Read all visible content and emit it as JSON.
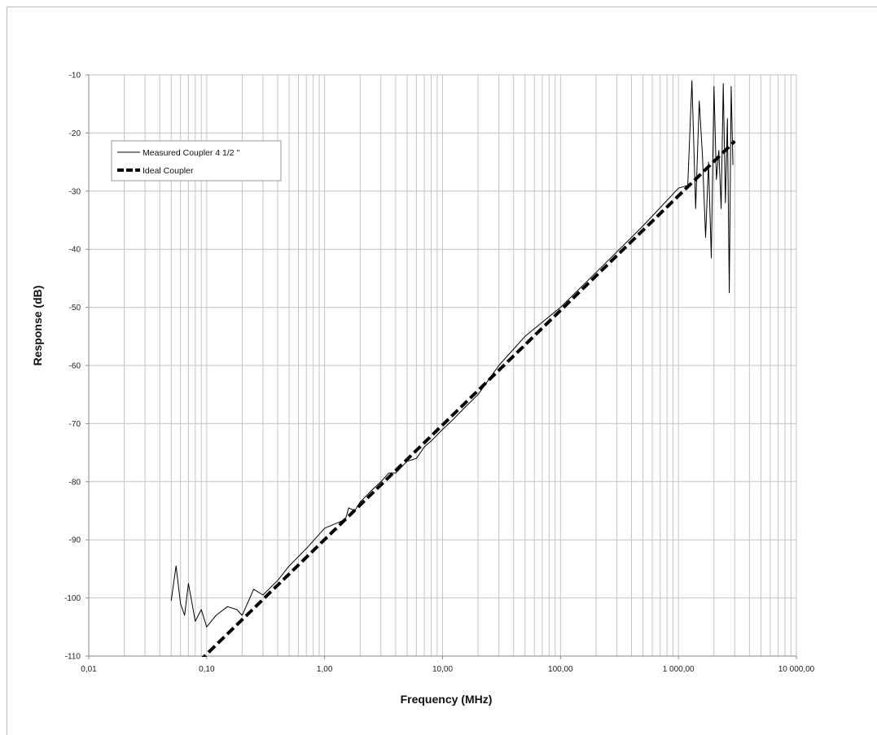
{
  "chart_data": {
    "type": "line",
    "title": "",
    "xlabel": "Frequency (MHz)",
    "ylabel": "Response (dB)",
    "x_scale": "log",
    "xlim": [
      0.01,
      10000
    ],
    "ylim": [
      -110,
      -10
    ],
    "x_ticks": [
      0.01,
      0.1,
      1,
      10,
      100,
      1000,
      10000
    ],
    "x_tick_labels": [
      "0,01",
      "0,10",
      "1,00",
      "10,00",
      "100,00",
      "1 000,00",
      "10 000,00"
    ],
    "y_ticks": [
      -10,
      -20,
      -30,
      -40,
      -50,
      -60,
      -70,
      -80,
      -90,
      -100,
      -110
    ],
    "y_tick_labels": [
      "-10",
      "-20",
      "-30",
      "-40",
      "-50",
      "-60",
      "-70",
      "-80",
      "-90",
      "-100",
      "-110"
    ],
    "grid": true,
    "legend": "top-left",
    "series": [
      {
        "name": "Measured Coupler 4 1/2 \"",
        "style": "thin-solid",
        "color": "#000000",
        "x": [
          0.05,
          0.055,
          0.06,
          0.065,
          0.07,
          0.08,
          0.09,
          0.1,
          0.12,
          0.15,
          0.18,
          0.2,
          0.25,
          0.3,
          0.4,
          0.5,
          0.7,
          1.0,
          1.5,
          1.6,
          1.8,
          2.0,
          2.5,
          3.0,
          3.5,
          4.0,
          5.0,
          6.0,
          7.0,
          8.0,
          10,
          12,
          15,
          20,
          30,
          50,
          100,
          200,
          500,
          1000,
          1200,
          1300,
          1400,
          1500,
          1600,
          1700,
          1800,
          1900,
          2000,
          2100,
          2200,
          2300,
          2400,
          2500,
          2600,
          2700,
          2800,
          2900
        ],
        "y": [
          -100.5,
          -94.5,
          -101,
          -103,
          -97.5,
          -104,
          -102,
          -105,
          -103,
          -101.5,
          -102,
          -103,
          -98.5,
          -99.5,
          -97,
          -94.5,
          -91.5,
          -88,
          -86.5,
          -84.5,
          -85,
          -83.5,
          -81.5,
          -80,
          -78.5,
          -78.5,
          -76.5,
          -76,
          -74,
          -73,
          -71,
          -69.5,
          -67.5,
          -65,
          -60,
          -55,
          -50,
          -44,
          -36,
          -29.5,
          -29,
          -11,
          -33,
          -14.5,
          -24,
          -38,
          -25,
          -41.5,
          -12,
          -28,
          -23,
          -33,
          -11.5,
          -32,
          -17.5,
          -47.5,
          -12,
          -25.5
        ]
      },
      {
        "name": "Ideal Coupler",
        "style": "thick-dashed",
        "color": "#000000",
        "x": [
          0.05,
          3000
        ],
        "y": [
          -115.6,
          -21.4
        ]
      }
    ]
  }
}
